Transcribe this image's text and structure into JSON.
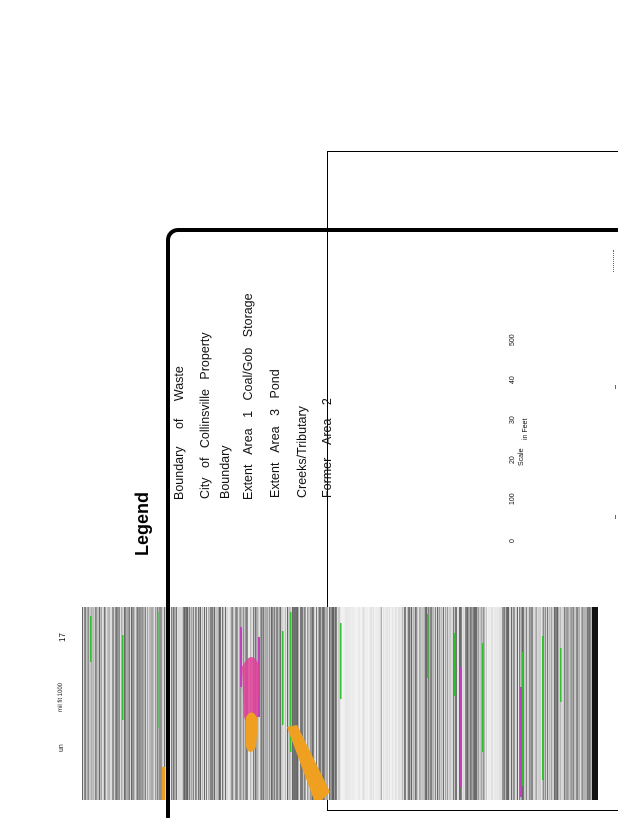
{
  "legend": {
    "title": "Legend",
    "items": [
      {
        "line1": "Boundary of Waste",
        "line2": ""
      },
      {
        "line1": "City of Collinsville Property",
        "line2": "Boundary"
      },
      {
        "line1": "Extent Area 1 Coal/Gob Storage",
        "line2": ""
      },
      {
        "line1": "Extent Area 3 Pond",
        "line2": ""
      },
      {
        "line1": "Creeks/Tributary",
        "line2": ""
      },
      {
        "line1": "Former Area 2",
        "line2": ""
      }
    ]
  },
  "scale_bar": {
    "ticks": [
      "0",
      "100",
      "20",
      "30",
      "40",
      "500"
    ],
    "label_scale": "Scale",
    "label_unit": "in Feet"
  },
  "marginal_text": {
    "top": "17",
    "middle": "mil fit 1000",
    "bottom": "un"
  },
  "colors": {
    "property_boundary": "#e0409a",
    "coal_gob": "#c040c0",
    "pond": "#f0a020",
    "creek": "#30c030"
  }
}
